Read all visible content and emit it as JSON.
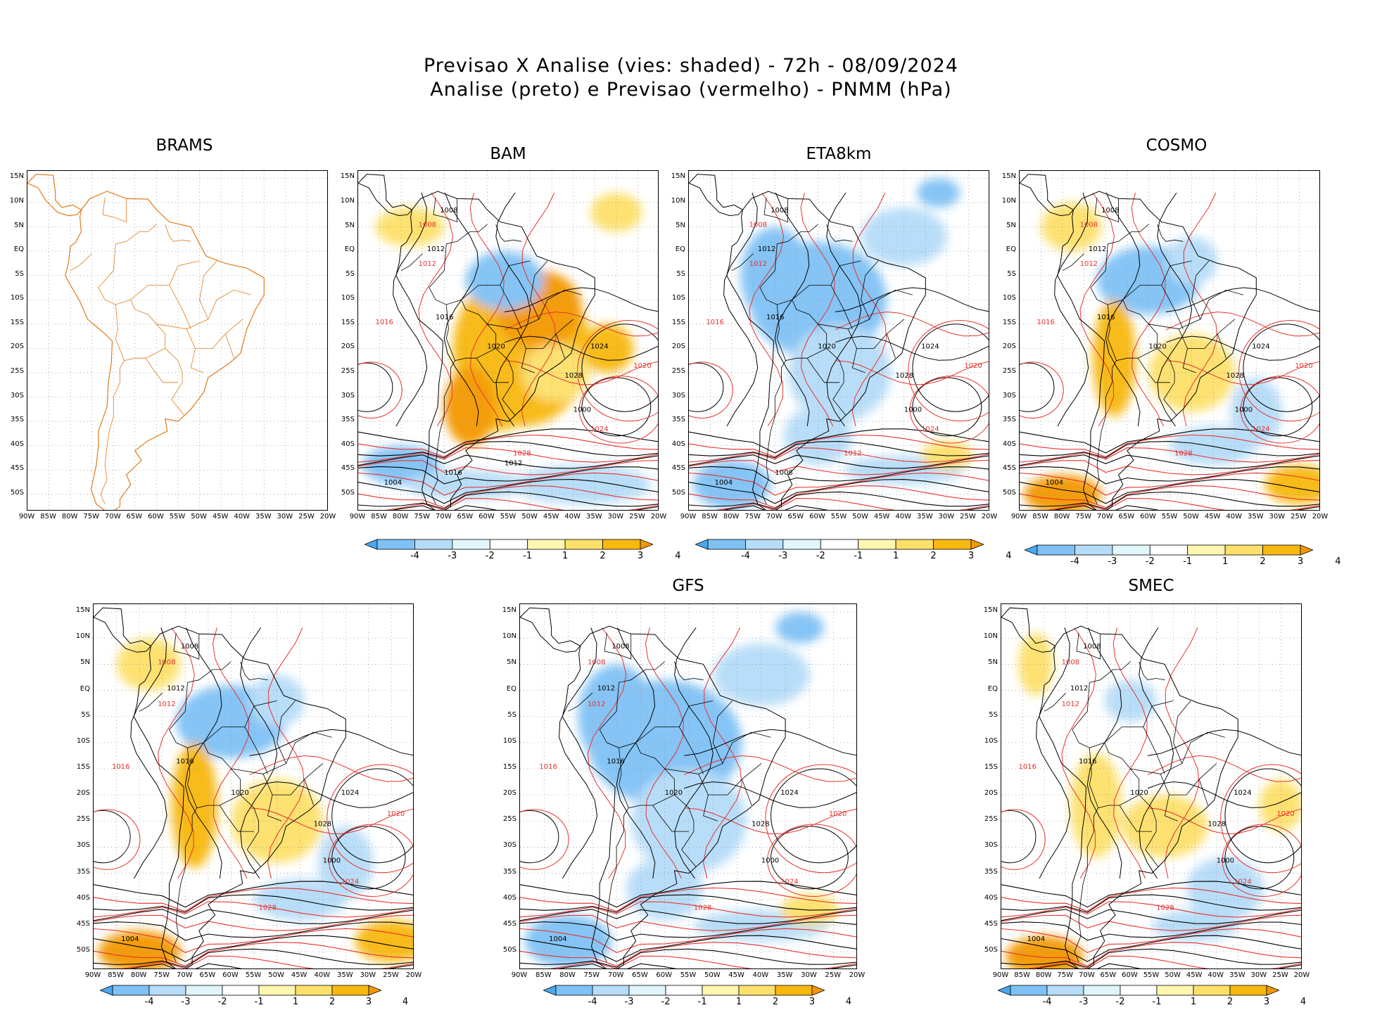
{
  "header": {
    "line1": "Previsao X Analise (vies: shaded) - 72h - 08/09/2024",
    "line2": "Analise (preto) e Previsao (vermelho) - PNMM (hPa)"
  },
  "axes": {
    "lat_labels": [
      "15N",
      "10N",
      "5N",
      "EQ",
      "5S",
      "10S",
      "15S",
      "20S",
      "25S",
      "30S",
      "35S",
      "40S",
      "45S",
      "50S"
    ],
    "lon_labels": [
      "90W",
      "85W",
      "80W",
      "75W",
      "70W",
      "65W",
      "60W",
      "55W",
      "50W",
      "45W",
      "40W",
      "35W",
      "30W",
      "25W",
      "20W"
    ]
  },
  "colorbar": {
    "labels": [
      "-4",
      "-3",
      "-2",
      "-1",
      "1",
      "2",
      "3",
      "4"
    ],
    "colors": [
      "#4aa8f0",
      "#7fc1f5",
      "#b5dcf8",
      "#e0f6fb",
      "#ffffff",
      "#fff6b0",
      "#fde06a",
      "#f8b810",
      "#f39800"
    ]
  },
  "colors": {
    "analysis_contour": "#000000",
    "forecast_contour": "#e8322e",
    "coastline_brams": "#e07b1a"
  },
  "panels": [
    {
      "id": "brams",
      "title": "BRAMS",
      "bias": "none",
      "colorbar": false,
      "contour_labels_black": [],
      "contour_labels_red": []
    },
    {
      "id": "bam",
      "title": "BAM",
      "bias": "warm",
      "colorbar": true,
      "contour_labels_black": [
        "1008",
        "1012",
        "1016",
        "1020",
        "1024",
        "1028",
        "1000",
        "1004",
        "1016",
        "1012"
      ],
      "contour_labels_red": [
        "1008",
        "1012",
        "1016",
        "1020",
        "1024",
        "1028"
      ]
    },
    {
      "id": "eta8km",
      "title": "ETA8km",
      "bias": "cold",
      "colorbar": true,
      "contour_labels_black": [
        "1008",
        "1012",
        "1016",
        "1020",
        "1024",
        "1028",
        "1000",
        "1004",
        "1008"
      ],
      "contour_labels_red": [
        "1008",
        "1012",
        "1016",
        "1020",
        "1024",
        "1012"
      ]
    },
    {
      "id": "cosmo",
      "title": "COSMO",
      "bias": "mixed",
      "colorbar": true,
      "contour_labels_black": [
        "1008",
        "1012",
        "1016",
        "1020",
        "1024",
        "1028",
        "1000",
        "1004"
      ],
      "contour_labels_red": [
        "1008",
        "1012",
        "1016",
        "1020",
        "1024",
        "1028"
      ]
    },
    {
      "id": "panel5",
      "title": "",
      "bias": "mixed",
      "colorbar": true,
      "contour_labels_black": [
        "1008",
        "1012",
        "1016",
        "1020",
        "1024",
        "1028",
        "1000",
        "1004"
      ],
      "contour_labels_red": [
        "1008",
        "1012",
        "1016",
        "1020",
        "1024",
        "1028"
      ]
    },
    {
      "id": "gfs",
      "title": "GFS",
      "bias": "cold",
      "colorbar": true,
      "contour_labels_black": [
        "1008",
        "1012",
        "1016",
        "1020",
        "1024",
        "1028",
        "1000",
        "1004"
      ],
      "contour_labels_red": [
        "1008",
        "1012",
        "1016",
        "1020",
        "1024",
        "1028"
      ]
    },
    {
      "id": "smec",
      "title": "SMEC",
      "bias": "light",
      "colorbar": true,
      "contour_labels_black": [
        "1008",
        "1012",
        "1016",
        "1020",
        "1024",
        "1028",
        "1000",
        "1004"
      ],
      "contour_labels_red": [
        "1008",
        "1012",
        "1016",
        "1020",
        "1024",
        "1028"
      ]
    }
  ]
}
